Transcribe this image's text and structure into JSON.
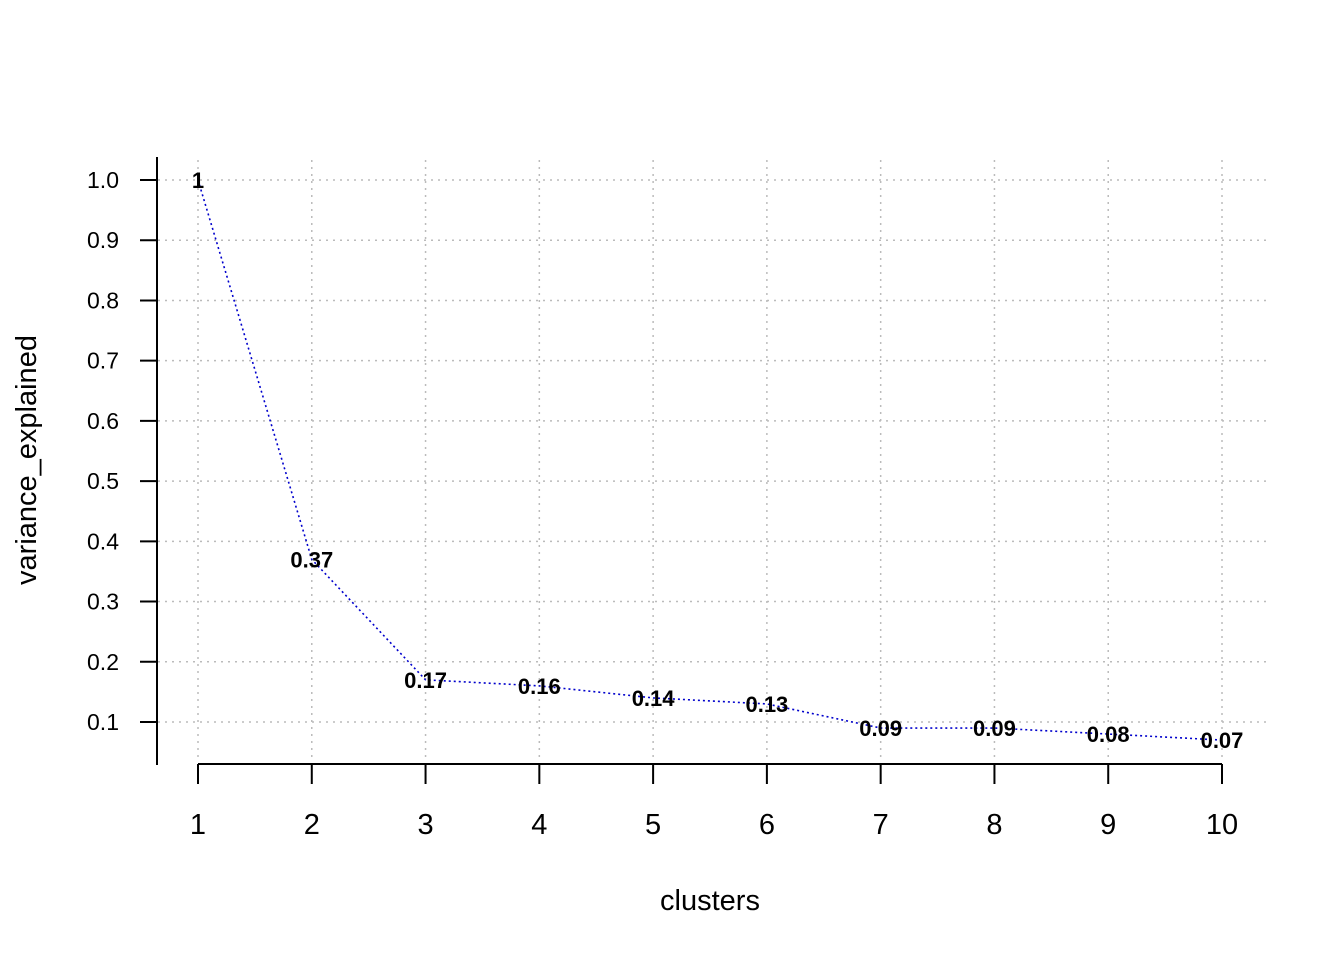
{
  "chart_data": {
    "type": "line",
    "title": "",
    "xlabel": "clusters",
    "ylabel": "variance_explained",
    "x": [
      1,
      2,
      3,
      4,
      5,
      6,
      7,
      8,
      9,
      10
    ],
    "x_tick_labels": [
      "1",
      "2",
      "3",
      "4",
      "5",
      "6",
      "7",
      "8",
      "9",
      "10"
    ],
    "y_tick_labels": [
      "0.1",
      "0.2",
      "0.3",
      "0.4",
      "0.5",
      "0.6",
      "0.7",
      "0.8",
      "0.9",
      "1.0"
    ],
    "y_ticks": [
      0.1,
      0.2,
      0.3,
      0.4,
      0.5,
      0.6,
      0.7,
      0.8,
      0.9,
      1.0
    ],
    "series": [
      {
        "values": [
          1.0,
          0.37,
          0.17,
          0.16,
          0.14,
          0.13,
          0.09,
          0.09,
          0.08,
          0.07
        ],
        "data_labels": [
          "1",
          "0.37",
          "0.17",
          "0.16",
          "0.14",
          "0.13",
          "0.09",
          "0.09",
          "0.08",
          "0.07"
        ],
        "line_color": "#0000cc",
        "line_style": "dotted"
      }
    ],
    "xlim": [
      1,
      10
    ],
    "ylim": [
      0.07,
      1.0
    ],
    "grid": true,
    "grid_color": "#bbbbbb",
    "grid_style": "dotted",
    "legend": "none"
  }
}
